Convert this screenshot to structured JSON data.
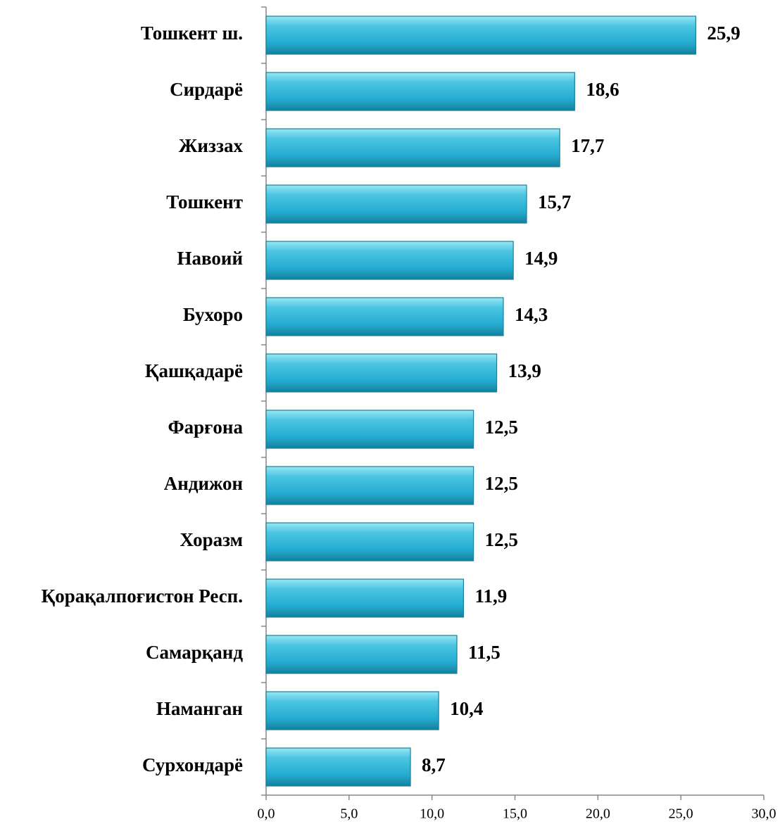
{
  "chart_data": {
    "type": "bar",
    "orientation": "horizontal",
    "categories": [
      "Тошкент ш.",
      "Сирдарё",
      "Жиззах",
      "Тошкент",
      "Навоий",
      "Бухоро",
      "Қашқадарё",
      "Фарғона",
      "Андижон",
      "Хоразм",
      "Қорақалпоғистон Респ.",
      "Самарқанд",
      "Наманган",
      "Сурхондарё"
    ],
    "values": [
      25.9,
      18.6,
      17.7,
      15.7,
      14.9,
      14.3,
      13.9,
      12.5,
      12.5,
      12.5,
      11.9,
      11.5,
      10.4,
      8.7
    ],
    "value_labels": [
      "25,9",
      "18,6",
      "17,7",
      "15,7",
      "14,9",
      "14,3",
      "13,9",
      "12,5",
      "12,5",
      "12,5",
      "11,9",
      "11,5",
      "10,4",
      "8,7"
    ],
    "color": "#2bb5d6",
    "xlim": [
      0,
      30
    ],
    "xticks": [
      {
        "value": 0,
        "label": "0,0"
      },
      {
        "value": 5,
        "label": "5,0"
      },
      {
        "value": 10,
        "label": "10,0"
      },
      {
        "value": 15,
        "label": "15,0"
      },
      {
        "value": 20,
        "label": "20,0"
      },
      {
        "value": 25,
        "label": "25,0"
      },
      {
        "value": 30,
        "label": "30,0"
      }
    ],
    "grid": false
  }
}
